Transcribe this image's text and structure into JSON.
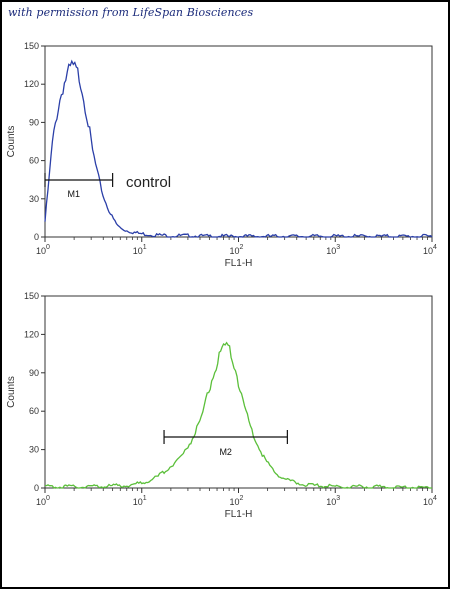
{
  "watermark": "with permission from LifeSpan Biosciences",
  "chart_data": [
    {
      "type": "line",
      "xlabel": "FL1-H",
      "ylabel": "Counts",
      "xscale": "log",
      "xlim": [
        1,
        10000
      ],
      "ylim": [
        0,
        150
      ],
      "yticks": [
        0,
        30,
        60,
        90,
        120,
        150
      ],
      "xticks": [
        1,
        10,
        100,
        1000,
        10000
      ],
      "xtick_labels": [
        {
          "base": "10",
          "exp": "0"
        },
        {
          "base": "10",
          "exp": "1"
        },
        {
          "base": "10",
          "exp": "2"
        },
        {
          "base": "10",
          "exp": "3"
        },
        {
          "base": "10",
          "exp": "4"
        }
      ],
      "color": "#2b3fa8",
      "series": [
        {
          "x": [
            1,
            1.05,
            1.1,
            1.15,
            1.2,
            1.3,
            1.4,
            1.5,
            1.6,
            1.7,
            1.8,
            1.9,
            2.0,
            2.1,
            2.2,
            2.3,
            2.4,
            2.5,
            2.7,
            2.9,
            3.1,
            3.4,
            3.7,
            4.0,
            4.5,
            5.0,
            5.5,
            6.0,
            7.0,
            8.0,
            9.0,
            10,
            12,
            15,
            20,
            30,
            50,
            100,
            300,
            1000,
            3000,
            10000
          ],
          "y": [
            12,
            30,
            45,
            62,
            75,
            92,
            105,
            115,
            122,
            127,
            131,
            134,
            133,
            130,
            128,
            124,
            118,
            110,
            96,
            82,
            68,
            54,
            42,
            32,
            22,
            15,
            10,
            7,
            5,
            4,
            3,
            2.5,
            2,
            1.5,
            1,
            1,
            0.5,
            0.5,
            0.5,
            0.5,
            0.5,
            0.5
          ]
        }
      ],
      "gate": {
        "label": "M1",
        "x_start": 1,
        "x_end": 5
      }
    },
    {
      "type": "line",
      "xlabel": "FL1-H",
      "ylabel": "Counts",
      "xscale": "log",
      "xlim": [
        1,
        10000
      ],
      "ylim": [
        0,
        150
      ],
      "yticks": [
        0,
        30,
        60,
        90,
        120,
        150
      ],
      "xticks": [
        1,
        10,
        100,
        1000,
        10000
      ],
      "xtick_labels": [
        {
          "base": "10",
          "exp": "0"
        },
        {
          "base": "10",
          "exp": "1"
        },
        {
          "base": "10",
          "exp": "2"
        },
        {
          "base": "10",
          "exp": "3"
        },
        {
          "base": "10",
          "exp": "4"
        }
      ],
      "color": "#5bbf3a",
      "series": [
        {
          "x": [
            1,
            2,
            4,
            7,
            10,
            14,
            18,
            22,
            27,
            32,
            38,
            44,
            50,
            56,
            62,
            68,
            74,
            80,
            88,
            96,
            105,
            115,
            128,
            145,
            165,
            190,
            220,
            260,
            320,
            400,
            550,
            800,
            1200,
            2000,
            4000,
            10000
          ],
          "y": [
            1,
            1,
            1.5,
            2,
            4,
            8,
            14,
            20,
            27,
            36,
            48,
            62,
            78,
            90,
            100,
            106,
            110,
            108,
            100,
            88,
            76,
            64,
            52,
            40,
            30,
            22,
            15,
            10,
            6,
            4,
            2,
            1.5,
            1,
            1,
            0.5,
            0.5
          ]
        }
      ],
      "gate": {
        "label": "M2",
        "x_start": 17,
        "x_end": 320
      }
    }
  ],
  "annotation": "control"
}
